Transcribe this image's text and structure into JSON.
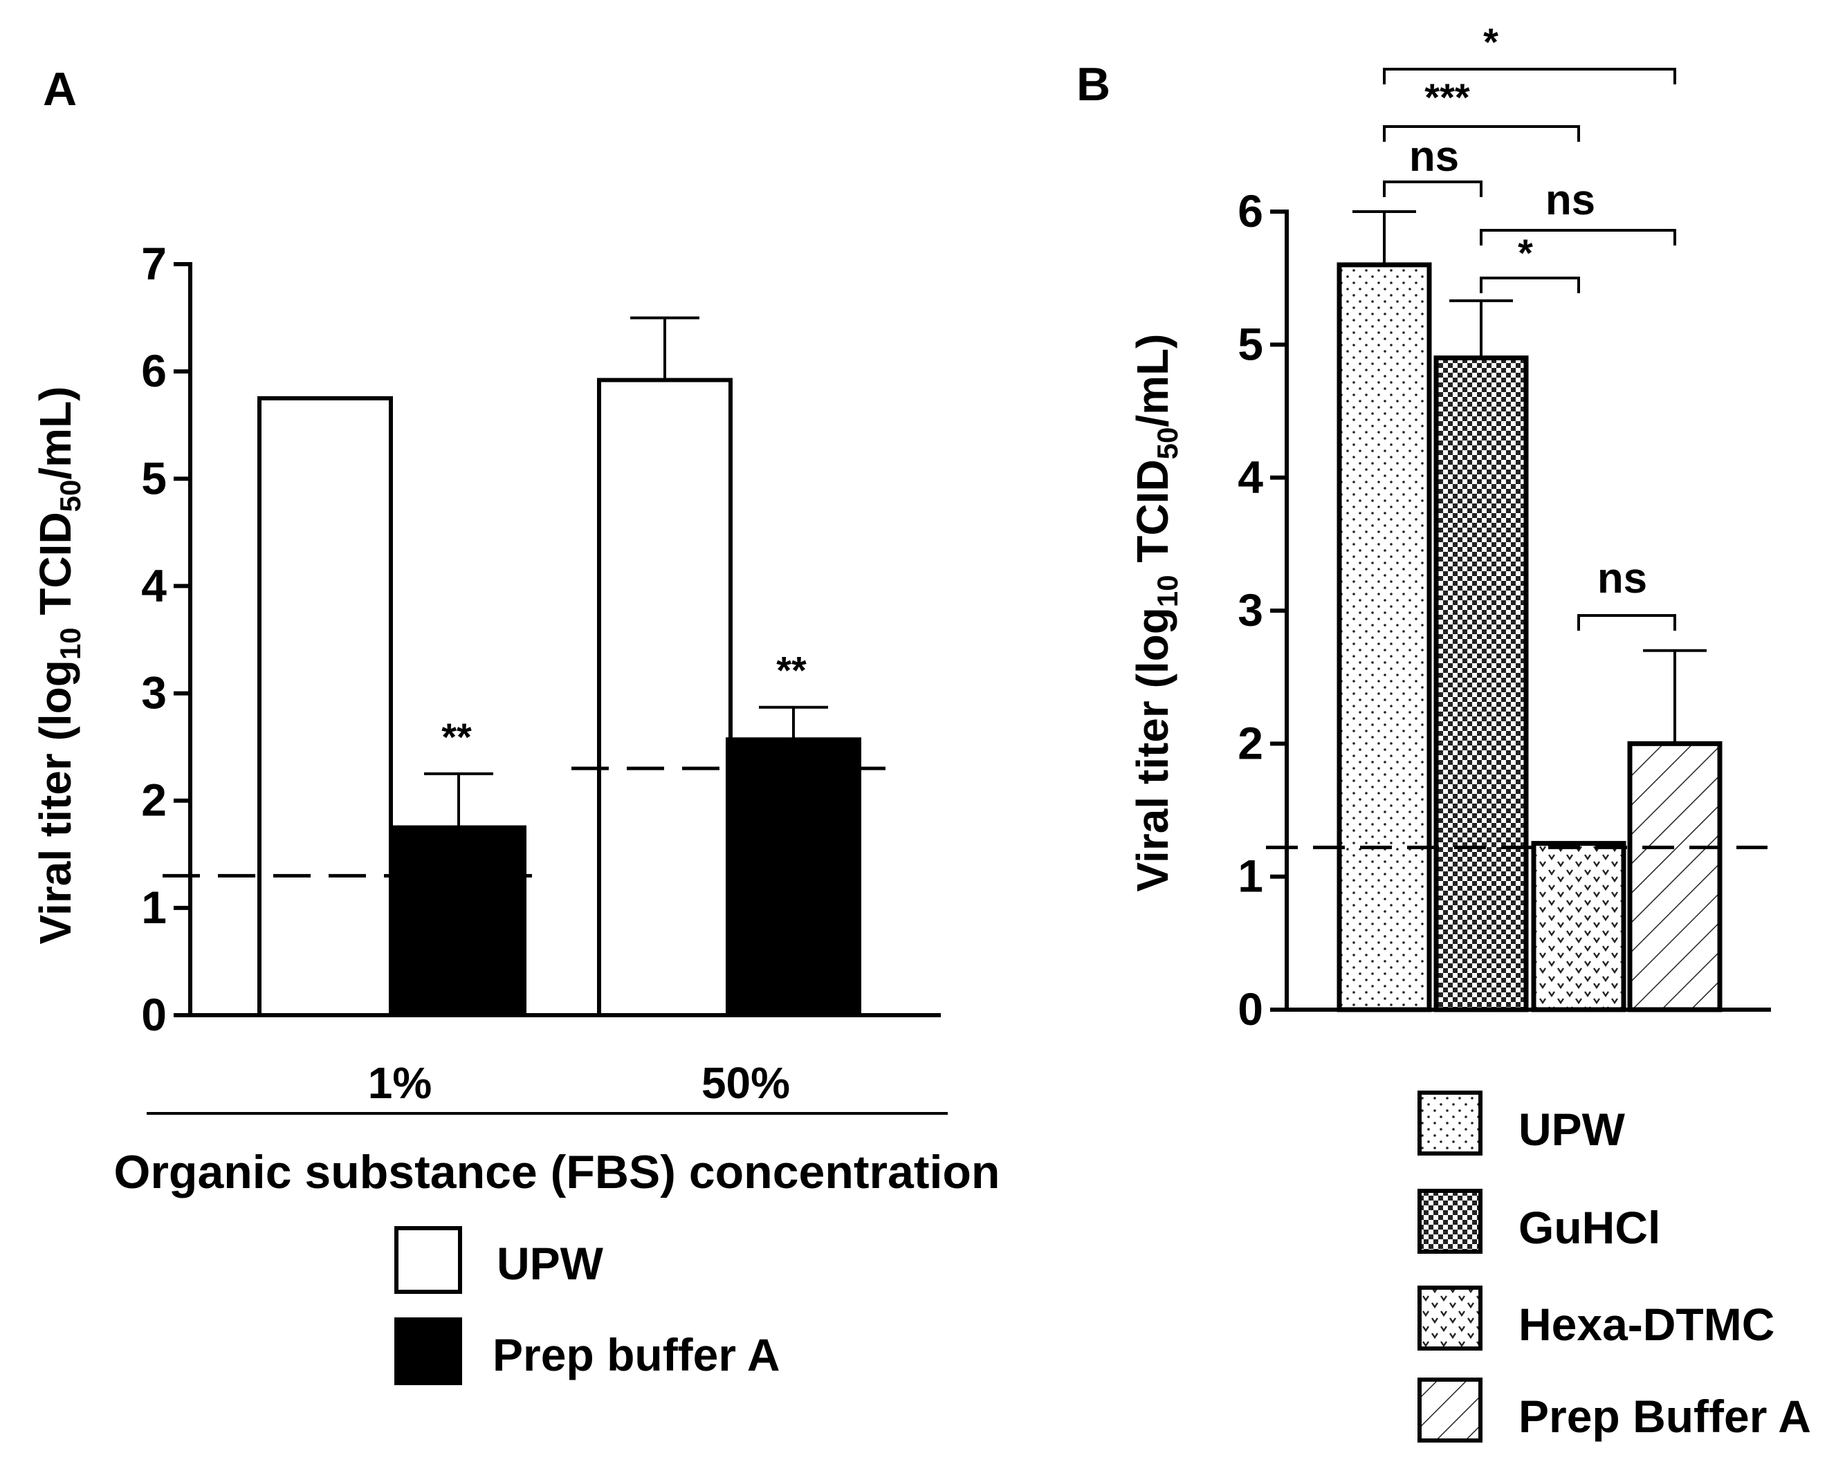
{
  "chart_data": [
    {
      "panel": "A",
      "type": "bar",
      "title": "",
      "categories": [
        "1%",
        "50%"
      ],
      "series": [
        {
          "name": "UPW",
          "values": [
            5.75,
            5.92
          ],
          "errors": [
            null,
            0.58
          ],
          "fill": "white"
        },
        {
          "name": "Prep buffer A",
          "values": [
            1.75,
            2.57
          ],
          "errors": [
            0.5,
            0.3
          ],
          "fill": "black"
        }
      ],
      "significance": [
        "**",
        "**"
      ],
      "detection_limits": [
        1.3,
        2.3
      ],
      "ylabel": {
        "main": "Viral titer (log",
        "sub": "10",
        "unit": " TCID",
        "sub2": "50",
        "tail": "/mL)"
      },
      "xlabel": "Organic substance (FBS) concentration",
      "ylim": [
        0,
        7
      ],
      "yticks": [
        "0",
        "1",
        "2",
        "3",
        "4",
        "5",
        "6",
        "7"
      ],
      "grid": false,
      "legend": "bottom"
    },
    {
      "panel": "B",
      "type": "bar",
      "title": "",
      "categories": [
        "UPW",
        "GuHCl",
        "Hexa-DTMC",
        "Prep Buffer A"
      ],
      "legend_labels": [
        "UPW",
        "GuHCl",
        "Hexa-DTMC",
        "Prep Buffer A"
      ],
      "values": [
        5.6,
        4.9,
        1.25,
        2.0
      ],
      "errors": [
        0.4,
        0.43,
        null,
        0.7
      ],
      "patterns": [
        "dots",
        "checker",
        "hearts",
        "hatch"
      ],
      "detection_limit": 1.22,
      "comparisons": [
        {
          "from": 0,
          "to": 3,
          "label": "*"
        },
        {
          "from": 0,
          "to": 2,
          "label": "***"
        },
        {
          "from": 0,
          "to": 1,
          "label": "ns"
        },
        {
          "from": 1,
          "to": 3,
          "label": "ns"
        },
        {
          "from": 1,
          "to": 2,
          "label": "*"
        },
        {
          "from": 2,
          "to": 3,
          "label": "ns"
        }
      ],
      "ylabel": {
        "main": "Viral titer (log",
        "sub": "10",
        "unit": " TCID",
        "sub2": "50",
        "tail": "/mL)"
      },
      "ylim": [
        0,
        6
      ],
      "yticks": [
        "0",
        "1",
        "2",
        "3",
        "4",
        "5",
        "6"
      ],
      "grid": false,
      "legend": "bottom"
    }
  ]
}
